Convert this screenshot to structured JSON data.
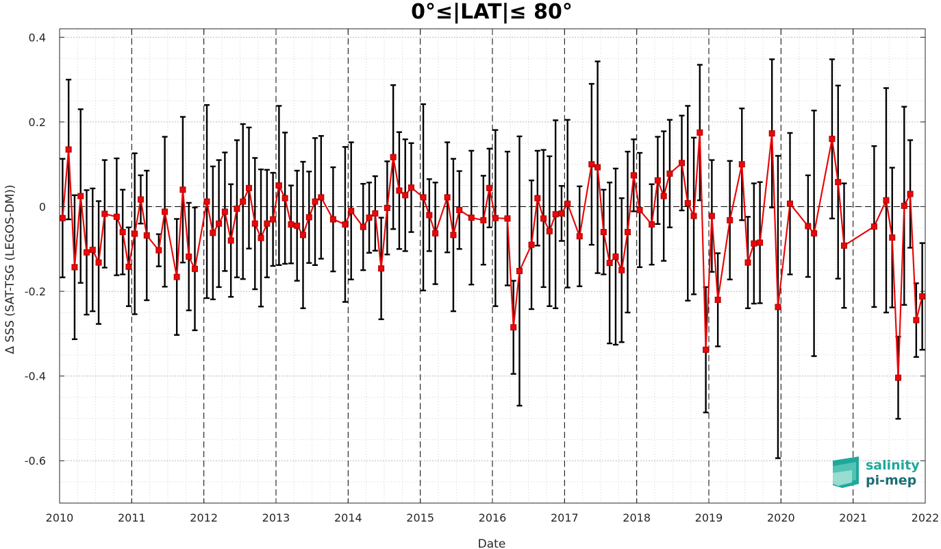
{
  "chart_data": {
    "type": "line",
    "title": "0°≤|LAT|≤ 80°",
    "xlabel": "Date",
    "ylabel": "Δ SSS (SAT-TSG (LEGOS-DM))",
    "xlim": [
      2010,
      2022
    ],
    "ylim": [
      -0.7,
      0.42
    ],
    "x_ticks": [
      "2010",
      "2011",
      "2012",
      "2013",
      "2014",
      "2015",
      "2016",
      "2017",
      "2018",
      "2019",
      "2020",
      "2021",
      "2022"
    ],
    "y_ticks": [
      "0.4",
      "0.2",
      "0",
      "-0.2",
      "-0.4",
      "-0.6"
    ],
    "y_tick_values": [
      0.4,
      0.2,
      0,
      -0.2,
      -0.4,
      -0.6
    ],
    "grid": "major and minor dotted",
    "year_separators": "dashed vertical lines at each year",
    "zero_line": "dashed horizontal line at 0",
    "colors": {
      "line": "#e8080a",
      "errorbar": "#000000",
      "grid": "#cfcfcf"
    },
    "series": [
      {
        "x": [
          "2010-01",
          "2010-02",
          "2010-03",
          "2010-04",
          "2010-05",
          "2010-06",
          "2010-07",
          "2010-08",
          "2010-10",
          "2010-11",
          "2010-12",
          "2011-01",
          "2011-02",
          "2011-03",
          "2011-05",
          "2011-06",
          "2011-08",
          "2011-09",
          "2011-10",
          "2011-11",
          "2012-01",
          "2012-02",
          "2012-03",
          "2012-04",
          "2012-05",
          "2012-06",
          "2012-07",
          "2012-08",
          "2012-09",
          "2012-10",
          "2012-11",
          "2012-12",
          "2013-01",
          "2013-02",
          "2013-03",
          "2013-04",
          "2013-05",
          "2013-06",
          "2013-07",
          "2013-08",
          "2013-10",
          "2013-12",
          "2014-01",
          "2014-03",
          "2014-04",
          "2014-05",
          "2014-06",
          "2014-07",
          "2014-08",
          "2014-09",
          "2014-10",
          "2014-11",
          "2015-01",
          "2015-02",
          "2015-03",
          "2015-05",
          "2015-06",
          "2015-07",
          "2015-09",
          "2015-11",
          "2015-12",
          "2016-01",
          "2016-03",
          "2016-04",
          "2016-05",
          "2016-07",
          "2016-08",
          "2016-09",
          "2016-10",
          "2016-11",
          "2016-12",
          "2017-01",
          "2017-03",
          "2017-05",
          "2017-06",
          "2017-07",
          "2017-08",
          "2017-09",
          "2017-10",
          "2017-11",
          "2017-12",
          "2018-01",
          "2018-03",
          "2018-04",
          "2018-05",
          "2018-06",
          "2018-08",
          "2018-09",
          "2018-10",
          "2018-11",
          "2018-12",
          "2019-01",
          "2019-02",
          "2019-04",
          "2019-06",
          "2019-07",
          "2019-08",
          "2019-09",
          "2019-11",
          "2019-12",
          "2020-02",
          "2020-05",
          "2020-06",
          "2020-09",
          "2020-10",
          "2020-11",
          "2021-04",
          "2021-06",
          "2021-07",
          "2021-08",
          "2021-09",
          "2021-10",
          "2021-11",
          "2021-12"
        ],
        "values": [
          -0.027,
          0.135,
          -0.143,
          0.025,
          -0.108,
          -0.102,
          -0.132,
          -0.017,
          -0.024,
          -0.06,
          -0.142,
          -0.064,
          0.017,
          -0.068,
          -0.103,
          -0.012,
          -0.166,
          0.04,
          -0.118,
          -0.147,
          0.012,
          -0.062,
          -0.04,
          -0.012,
          -0.08,
          -0.005,
          0.012,
          0.044,
          -0.04,
          -0.074,
          -0.04,
          -0.03,
          0.05,
          0.02,
          -0.042,
          -0.045,
          -0.067,
          -0.025,
          0.012,
          0.022,
          -0.03,
          -0.042,
          -0.01,
          -0.048,
          -0.026,
          -0.016,
          -0.146,
          -0.003,
          0.117,
          0.038,
          0.027,
          0.045,
          0.022,
          -0.02,
          -0.063,
          0.022,
          -0.067,
          -0.008,
          -0.026,
          -0.032,
          0.044,
          -0.027,
          -0.028,
          -0.285,
          -0.152,
          -0.09,
          0.02,
          -0.028,
          -0.058,
          -0.018,
          -0.016,
          0.007,
          -0.07,
          0.1,
          0.093,
          -0.06,
          -0.133,
          -0.118,
          -0.15,
          -0.06,
          0.074,
          -0.008,
          -0.042,
          0.062,
          0.025,
          0.078,
          0.103,
          0.008,
          -0.022,
          0.175,
          -0.338,
          -0.022,
          -0.22,
          -0.032,
          0.1,
          -0.132,
          -0.087,
          -0.085,
          0.173,
          -0.237,
          0.007,
          -0.046,
          -0.063,
          0.16,
          0.058,
          -0.092,
          -0.047,
          0.015,
          -0.073,
          -0.404,
          0.002,
          0.03,
          -0.268,
          -0.212
        ],
        "yerr": [
          0.14,
          0.165,
          0.17,
          0.205,
          0.147,
          0.145,
          0.145,
          0.127,
          0.138,
          0.1,
          0.093,
          0.19,
          0.057,
          0.153,
          0.038,
          0.177,
          0.137,
          0.172,
          0.127,
          0.145,
          0.228,
          0.157,
          0.15,
          0.14,
          0.133,
          0.162,
          0.183,
          0.143,
          0.155,
          0.162,
          0.127,
          0.11,
          0.188,
          0.155,
          0.092,
          0.13,
          0.173,
          0.108,
          0.15,
          0.145,
          0.123,
          0.183,
          0.162,
          0.102,
          0.083,
          0.088,
          0.12,
          0.11,
          0.17,
          0.138,
          0.132,
          0.105,
          0.22,
          0.085,
          0.12,
          0.13,
          0.18,
          0.092,
          0.158,
          0.105,
          0.093,
          0.208,
          0.158,
          0.11,
          0.318,
          0.152,
          0.112,
          0.162,
          0.177,
          0.222,
          0.065,
          0.198,
          0.118,
          0.19,
          0.25,
          0.1,
          0.19,
          0.208,
          0.17,
          0.19,
          0.085,
          0.135,
          0.095,
          0.103,
          0.153,
          0.127,
          0.112,
          0.23,
          0.185,
          0.16,
          0.148,
          0.132,
          0.11,
          0.14,
          0.132,
          0.108,
          0.142,
          0.143,
          0.175,
          0.357,
          0.167,
          0.12,
          0.29,
          0.188,
          0.228,
          0.147,
          0.19,
          0.265,
          0.165,
          0.097,
          0.234,
          0.127,
          0.087,
          0.126
        ]
      }
    ]
  },
  "logo": {
    "line1": "salinity",
    "line2": "pi-mep",
    "color1": "#1fa89a",
    "color2": "#1a6e73"
  }
}
